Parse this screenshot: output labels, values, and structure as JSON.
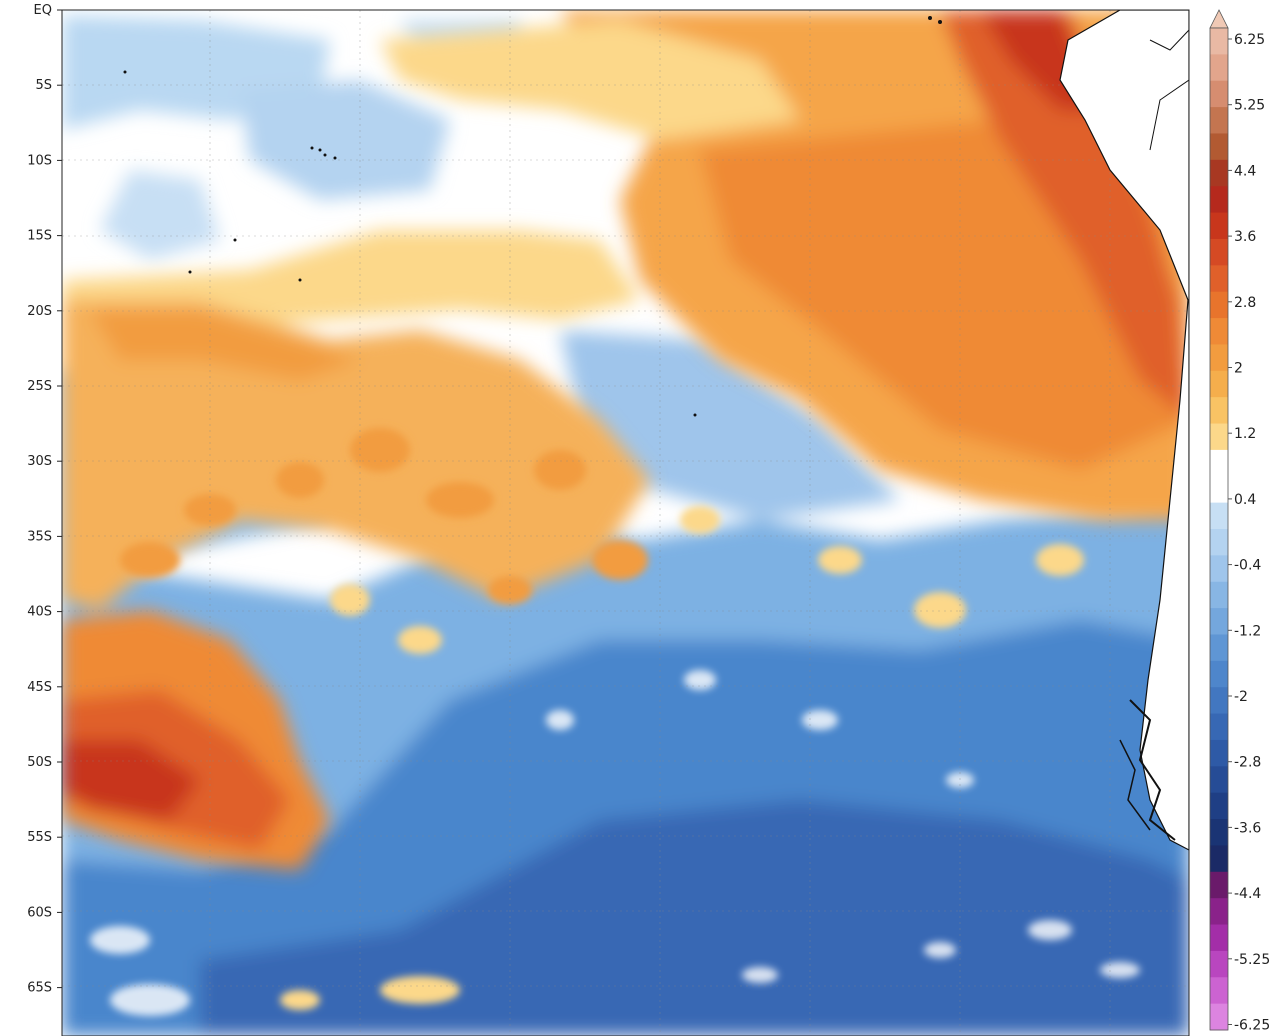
{
  "map": {
    "lat_labels": [
      "EQ",
      "5S",
      "10S",
      "15S",
      "20S",
      "25S",
      "30S",
      "35S",
      "40S",
      "45S",
      "50S",
      "55S",
      "60S",
      "65S"
    ],
    "colors": {
      "ocean_neutral": "#ffffff",
      "warm_light": "#fcd88a",
      "warm_mid": "#f5a54a",
      "warm_strong": "#e8742c",
      "warm_extreme": "#c8361c",
      "cool_light": "#b9d8f2",
      "cool_mid": "#7db1e3",
      "cool_strong": "#4a86cc",
      "cool_deep": "#3768b4",
      "coastline": "#111111"
    }
  },
  "colorbar": {
    "labels": [
      "6.25",
      "5.25",
      "4.4",
      "3.6",
      "2.8",
      "2",
      "1.2",
      "0.4",
      "-0.4",
      "-1.2",
      "-2",
      "-2.8",
      "-3.6",
      "-4.4",
      "-5.25",
      "-6.25"
    ],
    "colors": [
      "#e9b9a4",
      "#e2a58c",
      "#d68d70",
      "#c47550",
      "#b25a32",
      "#a83822",
      "#b5291d",
      "#c8361c",
      "#d54a24",
      "#e0602a",
      "#e8742c",
      "#ef8a36",
      "#f29c3f",
      "#f5ae4c",
      "#f9c364",
      "#fcd88a",
      "#ffffff",
      "#ffffff",
      "#c7dff4",
      "#b4d3f0",
      "#9fc5eb",
      "#88b6e4",
      "#74a7dd",
      "#5f96d4",
      "#4e86cb",
      "#4277c0",
      "#3768b4",
      "#2e5aa6",
      "#264c96",
      "#1f3f85",
      "#1a3474",
      "#1b2a66",
      "#6a1a6a",
      "#8a228a",
      "#a32ea8",
      "#b946bf",
      "#cc63d1",
      "#dc84e0"
    ]
  }
}
